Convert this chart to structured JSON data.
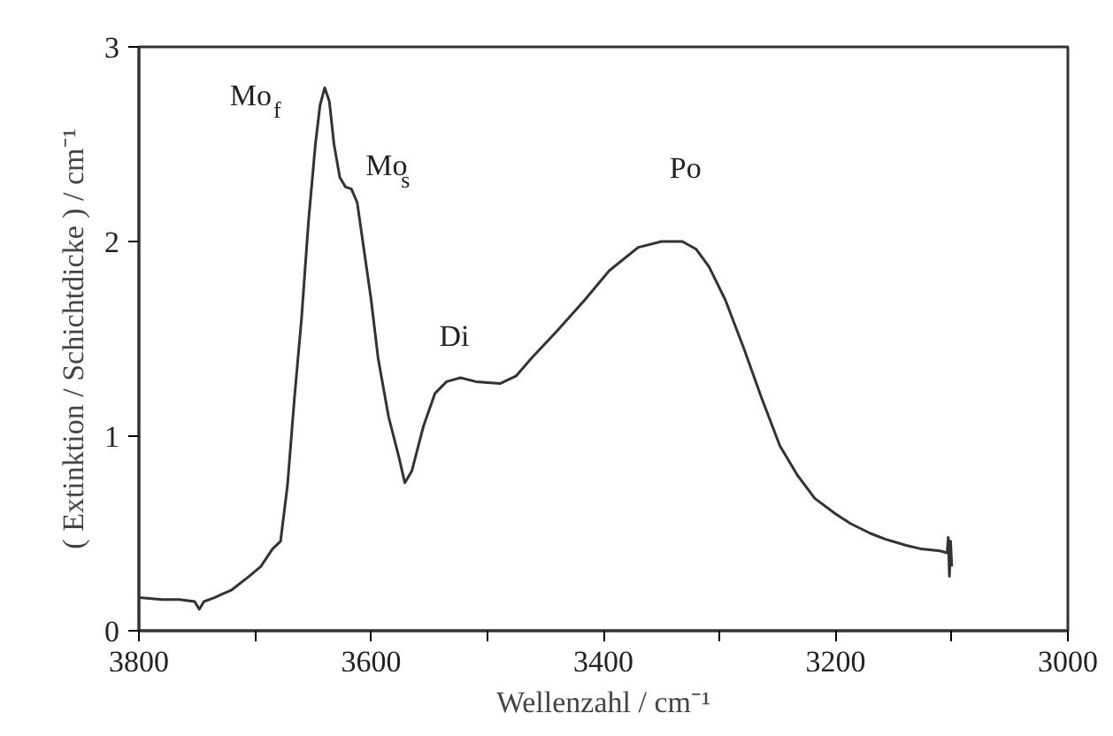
{
  "chart_data": {
    "type": "line",
    "xlabel": "Wellenzahl / cm⁻¹",
    "ylabel": "( Extinktion / Schichtdicke ) / cm⁻¹",
    "xlim": [
      3800,
      3000
    ],
    "ylim": [
      0,
      3
    ],
    "xticks": [
      3800,
      {
        "value": 3700,
        "label": null
      },
      3600,
      {
        "value": 3500,
        "label": null
      },
      3400,
      {
        "value": 3300,
        "label": null
      },
      3200,
      {
        "value": 3100,
        "label": null
      },
      3000
    ],
    "yticks": [
      0,
      1,
      2,
      3
    ],
    "grid": false,
    "marker": "none",
    "line_style": "solid",
    "series": [
      {
        "color": "#333333",
        "x": [
          3800,
          3780,
          3765,
          3752,
          3748,
          3744,
          3735,
          3720,
          3705,
          3695,
          3685,
          3678,
          3672,
          3666,
          3660,
          3654,
          3648,
          3644,
          3640,
          3636,
          3632,
          3627,
          3622,
          3617,
          3612,
          3606,
          3600,
          3594,
          3585,
          3576,
          3571,
          3565,
          3555,
          3545,
          3535,
          3523,
          3510,
          3489,
          3475,
          3462,
          3440,
          3416,
          3395,
          3370,
          3350,
          3332,
          3320,
          3309,
          3295,
          3279,
          3264,
          3248,
          3233,
          3218,
          3200,
          3187,
          3170,
          3157,
          3140,
          3126,
          3110,
          3104,
          3103,
          3102,
          3101,
          3100
        ],
        "values": [
          0.17,
          0.16,
          0.16,
          0.15,
          0.11,
          0.15,
          0.17,
          0.21,
          0.28,
          0.33,
          0.42,
          0.46,
          0.75,
          1.2,
          1.6,
          2.1,
          2.5,
          2.7,
          2.79,
          2.72,
          2.5,
          2.33,
          2.28,
          2.27,
          2.2,
          1.95,
          1.7,
          1.4,
          1.1,
          0.89,
          0.76,
          0.82,
          1.05,
          1.22,
          1.28,
          1.3,
          1.28,
          1.27,
          1.31,
          1.4,
          1.54,
          1.7,
          1.85,
          1.97,
          2.0,
          2.0,
          1.96,
          1.87,
          1.7,
          1.45,
          1.2,
          0.95,
          0.8,
          0.68,
          0.6,
          0.55,
          0.5,
          0.47,
          0.44,
          0.42,
          0.41,
          0.4,
          0.48,
          0.28,
          0.46,
          0.33
        ]
      }
    ],
    "annotations": [
      {
        "text": "Mo$_{f}$",
        "x": 3640,
        "y": 2.79
      },
      {
        "text": "Mo$_{s}$",
        "x": 3617,
        "y": 2.27
      },
      {
        "text": "Di",
        "x": 3523,
        "y": 1.3
      },
      {
        "text": "Po",
        "x": 3340,
        "y": 2.0
      }
    ]
  }
}
